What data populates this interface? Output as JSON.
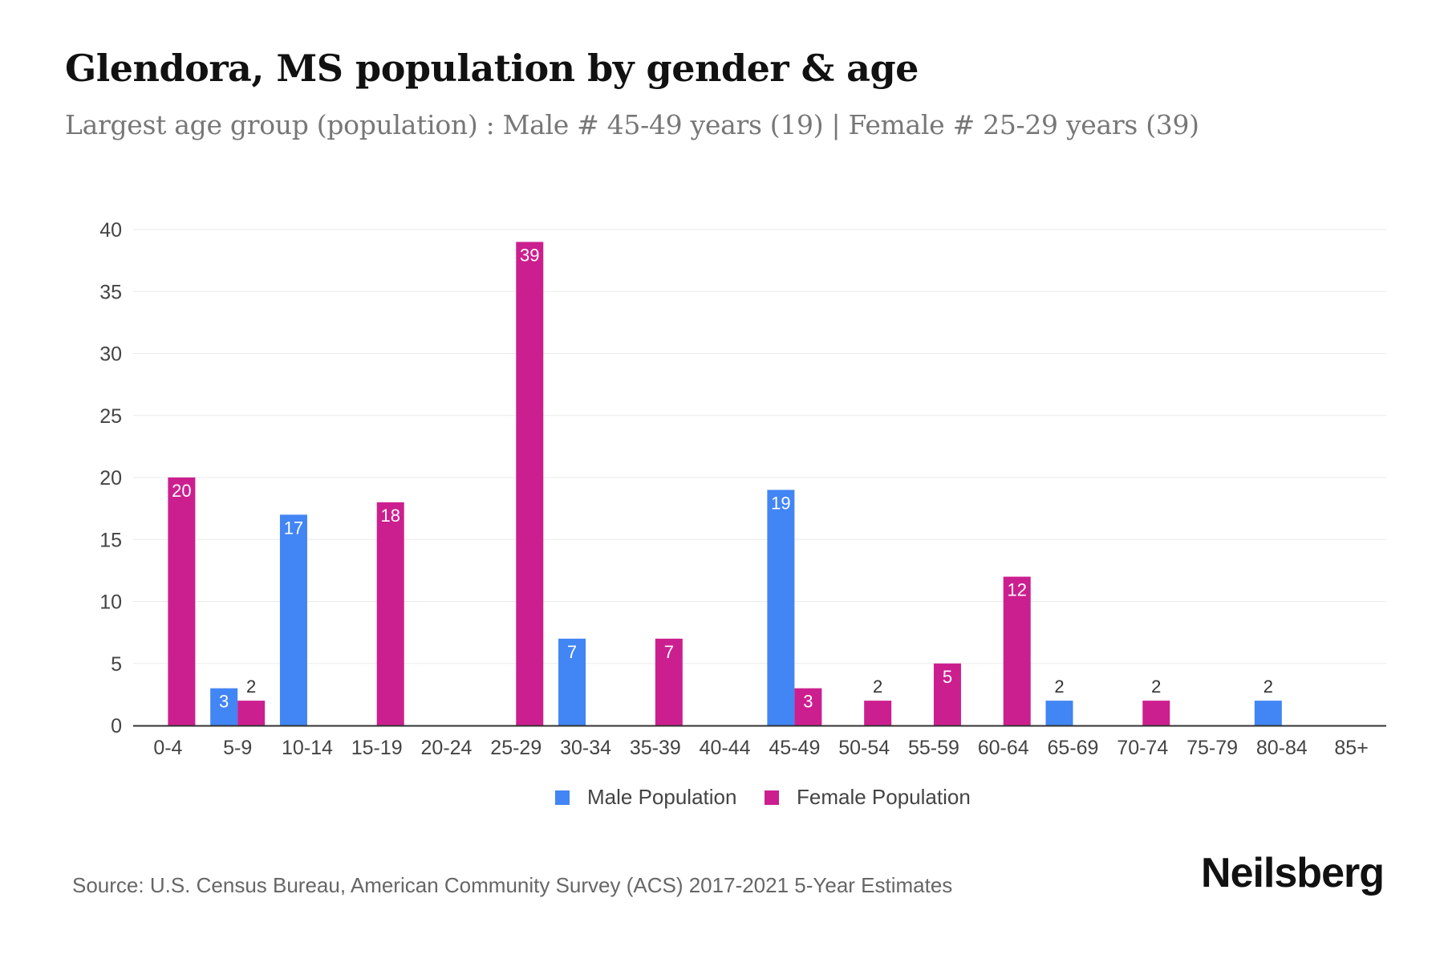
{
  "header": {
    "title": "Glendora, MS population by gender & age",
    "subtitle": "Largest age group (population) : Male # 45-49 years (19) | Female # 25-29 years (39)"
  },
  "footer": {
    "source": "Source: U.S. Census Bureau, American Community Survey (ACS) 2017-2021 5-Year Estimates",
    "brand": "Neilsberg"
  },
  "colors": {
    "male": "#4285f4",
    "female": "#cc1f8f",
    "grid": "#ebebeb",
    "axis": "#333333"
  },
  "chart_data": {
    "type": "bar",
    "categories": [
      "0-4",
      "5-9",
      "10-14",
      "15-19",
      "20-24",
      "25-29",
      "30-34",
      "35-39",
      "40-44",
      "45-49",
      "50-54",
      "55-59",
      "60-64",
      "65-69",
      "70-74",
      "75-79",
      "80-84",
      "85+"
    ],
    "series": [
      {
        "name": "Male Population",
        "values": [
          0,
          3,
          17,
          0,
          0,
          0,
          7,
          0,
          0,
          19,
          0,
          0,
          0,
          2,
          0,
          0,
          2,
          0
        ]
      },
      {
        "name": "Female Population",
        "values": [
          20,
          2,
          0,
          18,
          0,
          39,
          0,
          7,
          0,
          3,
          2,
          5,
          12,
          0,
          2,
          0,
          0,
          0
        ]
      }
    ],
    "yticks": [
      0,
      5,
      10,
      15,
      20,
      25,
      30,
      35,
      40
    ],
    "ylim": [
      0,
      40
    ],
    "grid": true,
    "legend_position": "bottom-center"
  }
}
